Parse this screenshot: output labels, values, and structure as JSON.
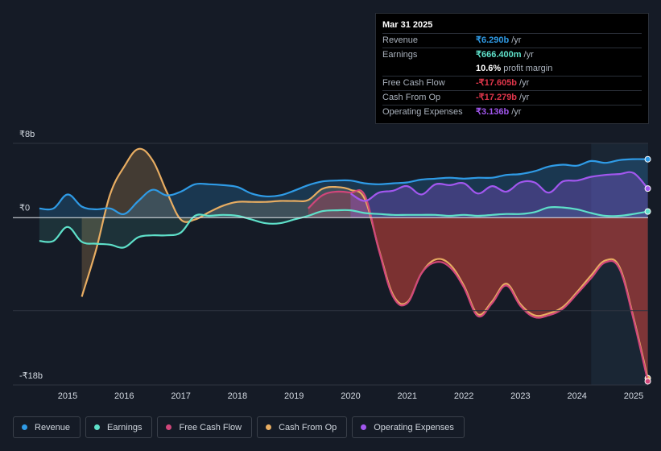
{
  "tooltip": {
    "date": "Mar 31 2025",
    "rows": [
      {
        "label": "Revenue",
        "value": "₹6.290b",
        "unit": "/yr",
        "color": "#2f9be6"
      },
      {
        "label": "Earnings",
        "value": "₹666.400m",
        "unit": "/yr",
        "color": "#5ee0c9"
      },
      {
        "label": "",
        "value": "10.6%",
        "unit": "profit margin",
        "color": "#ffffff"
      },
      {
        "label": "Free Cash Flow",
        "value": "-₹17.605b",
        "unit": "/yr",
        "color": "#e0364b"
      },
      {
        "label": "Cash From Op",
        "value": "-₹17.279b",
        "unit": "/yr",
        "color": "#e0364b"
      },
      {
        "label": "Operating Expenses",
        "value": "₹3.136b",
        "unit": "/yr",
        "color": "#a257ef"
      }
    ]
  },
  "legend": [
    {
      "label": "Revenue",
      "color": "#2f9be6"
    },
    {
      "label": "Earnings",
      "color": "#5ee0c9"
    },
    {
      "label": "Free Cash Flow",
      "color": "#d0467a"
    },
    {
      "label": "Cash From Op",
      "color": "#e8ad62"
    },
    {
      "label": "Operating Expenses",
      "color": "#a257ef"
    }
  ],
  "chart_data": {
    "type": "line",
    "title": "",
    "xlabel": "",
    "ylabel": "",
    "currency": "₹",
    "y_tick_labels": [
      "₹8b",
      "₹0",
      "-₹18b"
    ],
    "y_ticks": [
      8,
      0,
      -18
    ],
    "ylim": [
      -18,
      8
    ],
    "xlim": [
      2014.5,
      2025.25
    ],
    "x_tick_labels": [
      "2015",
      "2016",
      "2017",
      "2018",
      "2019",
      "2020",
      "2021",
      "2022",
      "2023",
      "2024",
      "2025"
    ],
    "x_ticks": [
      2015,
      2016,
      2017,
      2018,
      2019,
      2020,
      2021,
      2022,
      2023,
      2024,
      2025
    ],
    "forecast_start": 2024.25,
    "series": [
      {
        "name": "Revenue",
        "color": "#2f9be6",
        "x": [
          2014.5,
          2014.75,
          2015.0,
          2015.25,
          2015.5,
          2015.75,
          2016.0,
          2016.25,
          2016.5,
          2016.75,
          2017.0,
          2017.25,
          2017.5,
          2017.75,
          2018.0,
          2018.25,
          2018.5,
          2018.75,
          2019.0,
          2019.25,
          2019.5,
          2019.75,
          2020.0,
          2020.25,
          2020.5,
          2020.75,
          2021.0,
          2021.25,
          2021.5,
          2021.75,
          2022.0,
          2022.25,
          2022.5,
          2022.75,
          2023.0,
          2023.25,
          2023.5,
          2023.75,
          2024.0,
          2024.25,
          2024.5,
          2024.75,
          2025.0,
          2025.25
        ],
        "values": [
          1.0,
          1.0,
          2.5,
          1.2,
          0.9,
          1.0,
          0.4,
          1.8,
          3.0,
          2.4,
          2.8,
          3.6,
          3.6,
          3.5,
          3.3,
          2.6,
          2.3,
          2.4,
          2.9,
          3.5,
          3.9,
          4.0,
          4.0,
          3.7,
          3.6,
          3.7,
          3.8,
          4.1,
          4.2,
          4.3,
          4.2,
          4.3,
          4.3,
          4.6,
          4.7,
          5.0,
          5.5,
          5.7,
          5.6,
          6.1,
          5.9,
          6.2,
          6.3,
          6.29
        ]
      },
      {
        "name": "Earnings",
        "color": "#5ee0c9",
        "x": [
          2014.5,
          2014.75,
          2015.0,
          2015.25,
          2015.5,
          2015.75,
          2016.0,
          2016.25,
          2016.5,
          2016.75,
          2017.0,
          2017.25,
          2017.5,
          2017.75,
          2018.0,
          2018.25,
          2018.5,
          2018.75,
          2019.0,
          2019.25,
          2019.5,
          2019.75,
          2020.0,
          2020.25,
          2020.5,
          2020.75,
          2021.0,
          2021.25,
          2021.5,
          2021.75,
          2022.0,
          2022.25,
          2022.5,
          2022.75,
          2023.0,
          2023.25,
          2023.5,
          2023.75,
          2024.0,
          2024.25,
          2024.5,
          2024.75,
          2025.0,
          2025.25
        ],
        "values": [
          -2.5,
          -2.5,
          -1.0,
          -2.6,
          -2.8,
          -2.9,
          -3.2,
          -2.1,
          -1.9,
          -1.9,
          -1.6,
          0.2,
          0.2,
          0.3,
          0.2,
          -0.2,
          -0.6,
          -0.6,
          -0.2,
          0.2,
          0.7,
          0.8,
          0.8,
          0.5,
          0.4,
          0.3,
          0.3,
          0.3,
          0.3,
          0.2,
          0.3,
          0.2,
          0.3,
          0.4,
          0.4,
          0.6,
          1.1,
          1.1,
          0.9,
          0.5,
          0.2,
          0.2,
          0.4,
          0.666
        ]
      },
      {
        "name": "Free Cash Flow",
        "color": "#d0467a",
        "x": [
          2019.25,
          2019.5,
          2019.75,
          2020.0,
          2020.25,
          2020.5,
          2020.75,
          2021.0,
          2021.25,
          2021.5,
          2021.75,
          2022.0,
          2022.25,
          2022.5,
          2022.75,
          2023.0,
          2023.25,
          2023.5,
          2023.75,
          2024.0,
          2024.25,
          2024.5,
          2024.75,
          2025.0,
          2025.25
        ],
        "values": [
          1.0,
          2.4,
          2.8,
          2.7,
          2.4,
          -3.5,
          -8.5,
          -9.2,
          -6.0,
          -4.8,
          -5.3,
          -7.5,
          -10.6,
          -9.2,
          -7.3,
          -9.5,
          -10.7,
          -10.5,
          -9.8,
          -8.2,
          -6.5,
          -4.8,
          -5.5,
          -11.0,
          -17.605
        ]
      },
      {
        "name": "Cash From Op",
        "color": "#e8ad62",
        "x": [
          2015.25,
          2015.5,
          2015.75,
          2016.0,
          2016.25,
          2016.5,
          2016.75,
          2017.0,
          2017.25,
          2017.5,
          2017.75,
          2018.0,
          2018.25,
          2018.5,
          2018.75,
          2019.0,
          2019.25,
          2019.5,
          2019.75,
          2020.0,
          2020.25,
          2020.5,
          2020.75,
          2021.0,
          2021.25,
          2021.5,
          2021.75,
          2022.0,
          2022.25,
          2022.5,
          2022.75,
          2023.0,
          2023.25,
          2023.5,
          2023.75,
          2024.0,
          2024.25,
          2024.5,
          2024.75,
          2025.0,
          2025.25
        ],
        "values": [
          -8.5,
          -3.5,
          2.5,
          5.5,
          7.4,
          6.2,
          2.8,
          -0.2,
          -0.2,
          0.6,
          1.3,
          1.7,
          1.7,
          1.7,
          1.8,
          1.8,
          1.9,
          3.1,
          3.3,
          3.0,
          2.0,
          -3.4,
          -8.3,
          -9.1,
          -6.0,
          -4.5,
          -5.0,
          -7.3,
          -10.4,
          -9.0,
          -7.1,
          -9.3,
          -10.5,
          -10.3,
          -9.6,
          -8.0,
          -6.2,
          -4.6,
          -5.3,
          -10.8,
          -17.279
        ]
      },
      {
        "name": "Operating Expenses",
        "color": "#a257ef",
        "x": [
          2020.0,
          2020.25,
          2020.5,
          2020.75,
          2021.0,
          2021.25,
          2021.5,
          2021.75,
          2022.0,
          2022.25,
          2022.5,
          2022.75,
          2023.0,
          2023.25,
          2023.5,
          2023.75,
          2024.0,
          2024.25,
          2024.5,
          2024.75,
          2025.0,
          2025.25
        ],
        "values": [
          2.6,
          1.8,
          2.7,
          2.9,
          3.4,
          2.5,
          3.6,
          3.5,
          3.7,
          2.6,
          3.4,
          2.8,
          3.8,
          3.8,
          2.7,
          3.9,
          4.0,
          4.4,
          4.6,
          4.7,
          4.8,
          3.136
        ]
      }
    ]
  }
}
